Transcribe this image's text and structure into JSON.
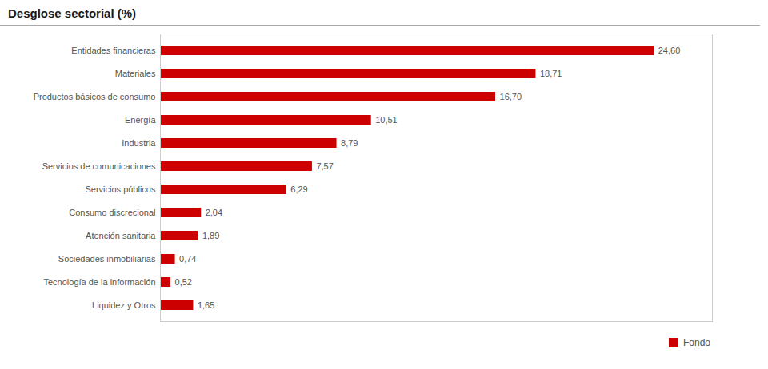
{
  "chart_data": {
    "type": "bar",
    "title": "Desglose sectorial (%)",
    "orientation": "horizontal",
    "categories": [
      "Liquidez y Otros",
      "Tecnología de la información",
      "Sociedades inmobiliarias",
      "Atención sanitaria",
      "Consumo discrecional",
      "Servicios públicos",
      "Servicios de comunicaciones",
      "Industria",
      "Energía",
      "Productos básicos de consumo",
      "Materiales",
      "Entidades financieras"
    ],
    "series": [
      {
        "name": "Fondo",
        "color": "#cc0000",
        "values": [
          1.65,
          0.52,
          0.74,
          1.89,
          2.04,
          6.29,
          7.57,
          8.79,
          10.51,
          16.7,
          18.71,
          24.6
        ],
        "value_labels": [
          "1,65",
          "0,52",
          "0,74",
          "1,89",
          "2,04",
          "6,29",
          "7,57",
          "8,79",
          "10,51",
          "16,70",
          "18,71",
          "24,60"
        ]
      }
    ],
    "xlim": [
      0,
      27.5
    ],
    "grid": false,
    "data_labels": true,
    "tick_labels": "y",
    "legend": "lower right"
  }
}
